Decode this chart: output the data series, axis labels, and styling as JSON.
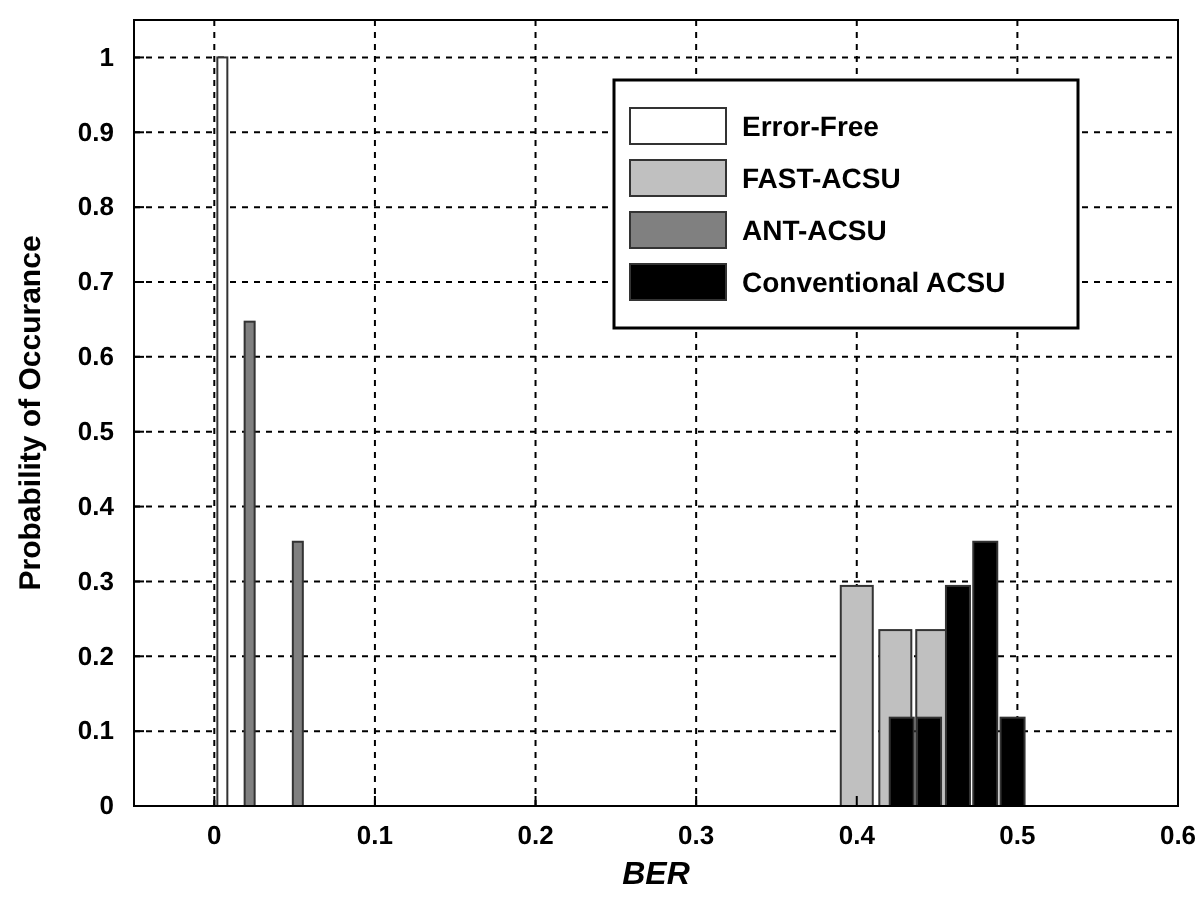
{
  "chart_data": {
    "type": "bar",
    "xlabel": "BER",
    "ylabel": "Probability of Occurance",
    "xlim": [
      -0.05,
      0.6
    ],
    "xticks": [
      0,
      0.1,
      0.2,
      0.3,
      0.4,
      0.5,
      0.6
    ],
    "ylim": [
      0,
      1.05
    ],
    "yticks": [
      0,
      0.1,
      0.2,
      0.3,
      0.4,
      0.5,
      0.6,
      0.7,
      0.8,
      0.9,
      1
    ],
    "grid": true,
    "legend": "top right",
    "series": [
      {
        "name": "Error-Free",
        "color": "#ffffff",
        "x": [
          0.005
        ],
        "values": [
          1
        ]
      },
      {
        "name": "FAST-ACSU",
        "color": "#c0c0c0",
        "x": [
          0.4,
          0.424,
          0.447
        ],
        "values": [
          0.294,
          0.235,
          0.235
        ]
      },
      {
        "name": "ANT-ACSU",
        "color": "#808080",
        "x": [
          0.022,
          0.052
        ],
        "values": [
          0.647,
          0.353
        ]
      },
      {
        "name": "Conventional ACSU",
        "color": "#000000",
        "x": [
          0.428,
          0.445,
          0.463,
          0.48,
          0.497
        ],
        "values": [
          0.118,
          0.118,
          0.294,
          0.353,
          0.118
        ]
      }
    ]
  }
}
